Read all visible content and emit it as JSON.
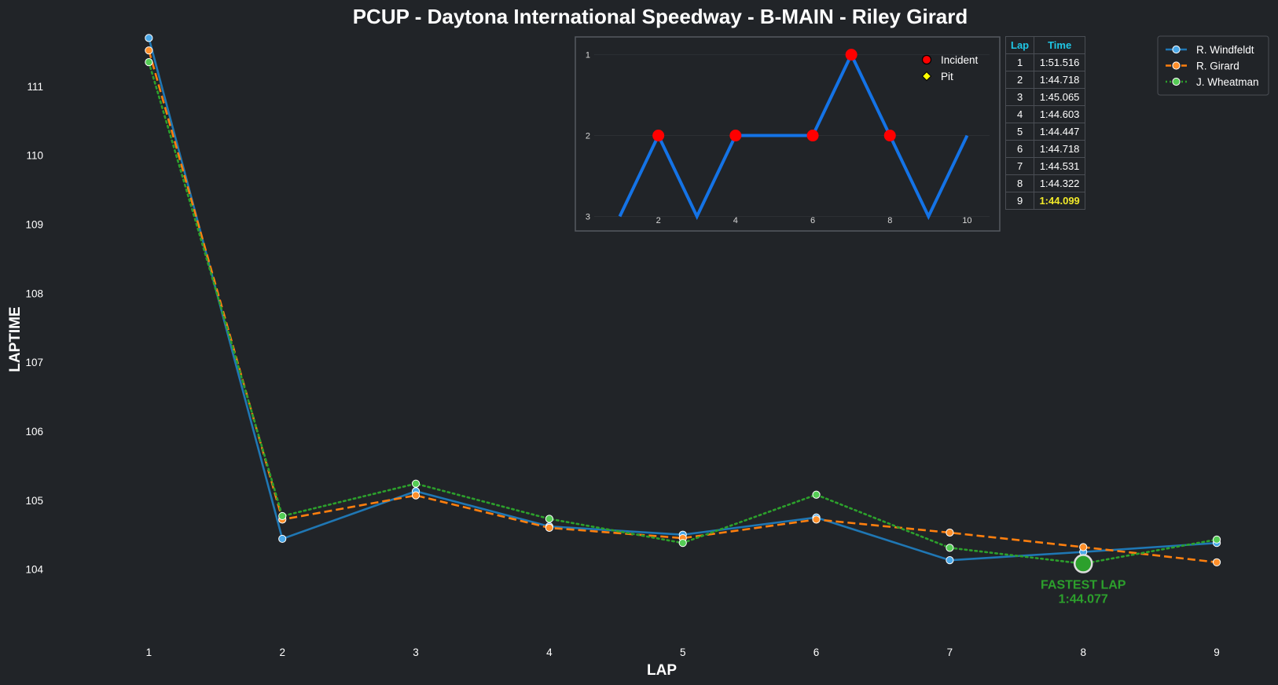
{
  "chart_data": [
    {
      "type": "line",
      "title": "PCUP - Daytona International Speedway - B-MAIN - Riley Girard",
      "xlabel": "LAP",
      "ylabel": "LAPTIME",
      "x": [
        1,
        2,
        3,
        4,
        5,
        6,
        7,
        8,
        9
      ],
      "xlim": [
        0.25,
        9.4
      ],
      "ylim": [
        103.05,
        111.75
      ],
      "yticks": [
        104,
        105,
        106,
        107,
        108,
        109,
        110,
        111
      ],
      "grid": false,
      "legend_position": "top-right",
      "series": [
        {
          "name": "R. Windfeldt",
          "color": "#1f77b4",
          "style": "solid",
          "values": [
            111.7,
            104.44,
            105.13,
            104.62,
            104.5,
            104.75,
            104.13,
            104.25,
            104.38
          ]
        },
        {
          "name": "R. Girard",
          "color": "#ff7f0e",
          "style": "dashed",
          "values": [
            111.52,
            104.72,
            105.07,
            104.6,
            104.45,
            104.72,
            104.53,
            104.32,
            104.1
          ]
        },
        {
          "name": "J. Wheatman",
          "color": "#2ca02c",
          "style": "dotted",
          "values": [
            111.35,
            104.77,
            105.24,
            104.73,
            104.38,
            105.08,
            104.31,
            104.08,
            104.43
          ]
        }
      ],
      "annotation": {
        "label": "FASTEST LAP",
        "time": "1:44.077",
        "x": 8,
        "y": 104.08,
        "color": "#2ca02c"
      }
    },
    {
      "type": "line",
      "title": "",
      "x": [
        1,
        2,
        3,
        4,
        5,
        6,
        7,
        8,
        9,
        10
      ],
      "values": [
        3,
        2,
        3,
        2,
        2,
        2,
        1,
        2,
        3,
        2
      ],
      "xlim": [
        0.5,
        10.5
      ],
      "ylim": [
        3.18,
        0.78
      ],
      "xticks": [
        2,
        4,
        6,
        8,
        10
      ],
      "yticks": [
        1,
        2,
        3
      ],
      "y_inverted": true,
      "line_color": "#1473e6",
      "incidents": [
        2,
        4,
        6,
        7,
        8
      ],
      "pits": [],
      "legend": [
        {
          "label": "Incident",
          "color": "#ff0000",
          "marker": "circle"
        },
        {
          "label": "Pit",
          "color": "#ffff00",
          "marker": "diamond"
        }
      ]
    }
  ],
  "lap_table": {
    "headers": {
      "lap": "Lap",
      "time": "Time"
    },
    "rows": [
      {
        "lap": "1",
        "time": "1:51.516"
      },
      {
        "lap": "2",
        "time": "1:44.718"
      },
      {
        "lap": "3",
        "time": "1:45.065"
      },
      {
        "lap": "4",
        "time": "1:44.603"
      },
      {
        "lap": "5",
        "time": "1:44.447"
      },
      {
        "lap": "6",
        "time": "1:44.718"
      },
      {
        "lap": "7",
        "time": "1:44.531"
      },
      {
        "lap": "8",
        "time": "1:44.322"
      },
      {
        "lap": "9",
        "time": "1:44.099"
      }
    ],
    "best_lap": "9",
    "header_color": "#1fc7e6",
    "best_color": "#f2ea2a"
  }
}
